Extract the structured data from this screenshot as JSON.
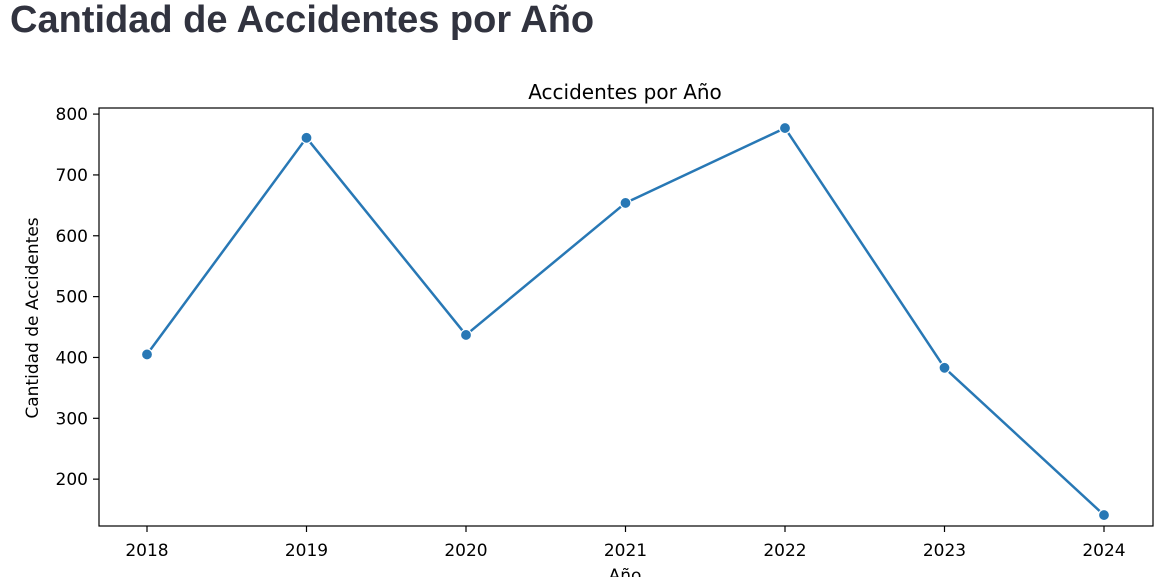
{
  "page": {
    "title": "Cantidad de Accidentes por Año"
  },
  "chart_data": {
    "type": "line",
    "title": "Accidentes por Año",
    "xlabel": "Año",
    "ylabel": "Cantidad de Accidentes",
    "x": [
      "2018",
      "2019",
      "2020",
      "2021",
      "2022",
      "2023",
      "2024"
    ],
    "series": [
      {
        "values": [
          405,
          761,
          437,
          654,
          777,
          383,
          141
        ],
        "color": "#2878b5"
      }
    ],
    "yticks": [
      200,
      300,
      400,
      500,
      600,
      700,
      800
    ],
    "ylim": [
      123,
      810
    ],
    "marker": "circle",
    "grid": false,
    "legend": false
  }
}
